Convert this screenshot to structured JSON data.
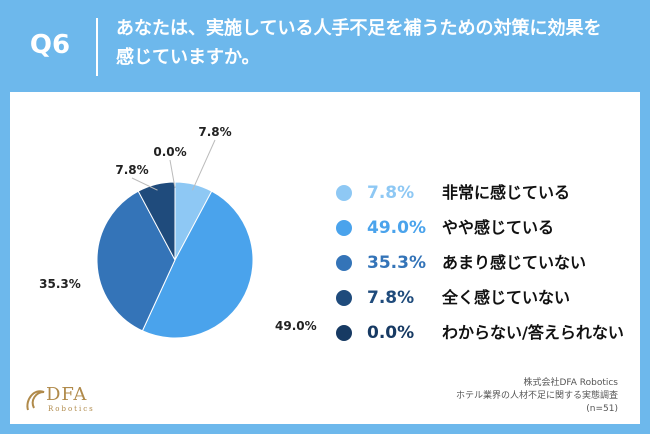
{
  "header": {
    "qnum": "Q6",
    "question": "あなたは、実施している人手不足を補うための対策に効果を感じていますか。"
  },
  "chart_data": {
    "type": "pie",
    "start_angle_deg": 0,
    "direction": "clockwise",
    "slices": [
      {
        "label": "非常に感じている",
        "value": 7.8,
        "display": "7.8%",
        "color": "#8ec8f4"
      },
      {
        "label": "やや感じている",
        "value": 49.0,
        "display": "49.0%",
        "color": "#4aa3ec"
      },
      {
        "label": "あまり感じていない",
        "value": 35.3,
        "display": "35.3%",
        "color": "#3474b8"
      },
      {
        "label": "全く感じていない",
        "value": 7.8,
        "display": "7.8%",
        "color": "#1f4b7c"
      },
      {
        "label": "わからない/答えられない",
        "value": 0.0,
        "display": "0.0%",
        "color": "#173a63"
      }
    ]
  },
  "footer": {
    "logo": "DFA",
    "logo_sub": "Robotics",
    "source_company": "株式会社DFA Robotics",
    "source_survey": "ホテル業界の人材不足に関する実態調査",
    "source_n": "(n=51)"
  }
}
